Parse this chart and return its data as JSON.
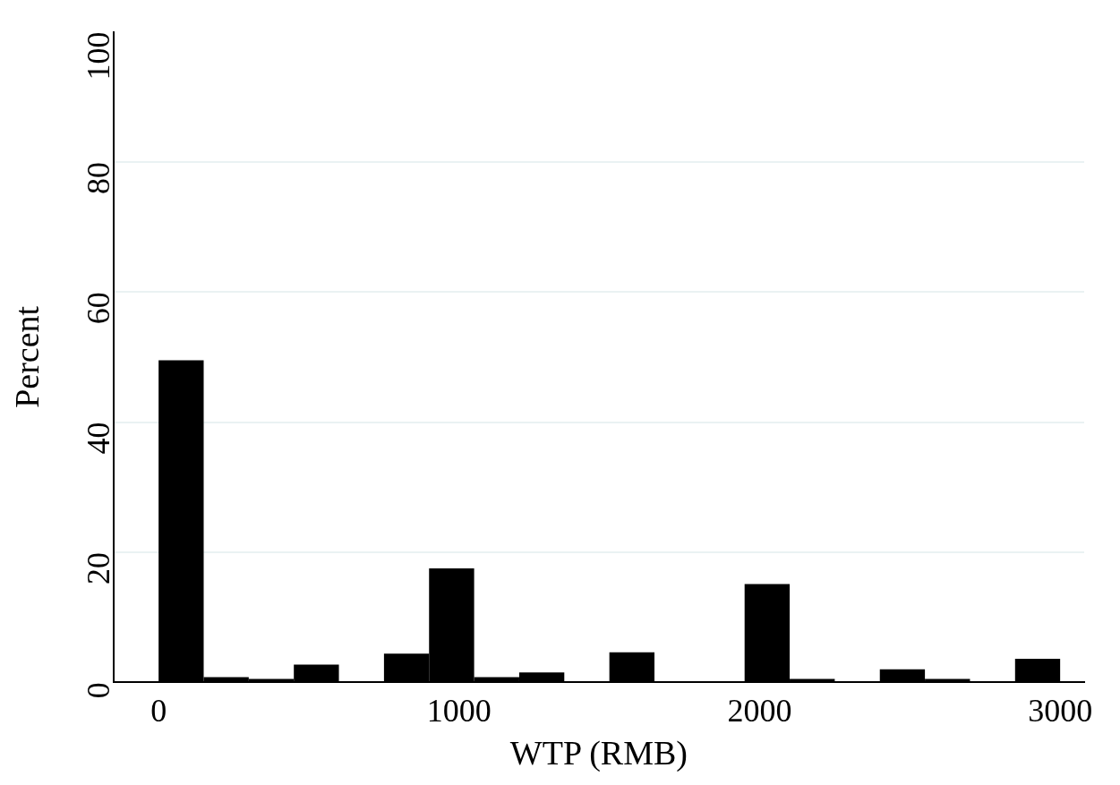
{
  "chart_data": {
    "type": "histogram",
    "xlabel": "WTP (RMB)",
    "ylabel": "Percent",
    "bins": [
      0,
      150,
      300,
      450,
      600,
      750,
      900,
      1050,
      1200,
      1350,
      1500,
      1650,
      1800,
      1950,
      2100,
      2250,
      2400,
      2550,
      2700,
      2850,
      3000
    ],
    "values": [
      49.5,
      0.8,
      0.5,
      2.7,
      0,
      4.4,
      17.5,
      0.8,
      1.5,
      0,
      4.6,
      0,
      0,
      15.1,
      0.5,
      0,
      2.0,
      0.5,
      0,
      3.6
    ],
    "color": "#000000",
    "xlim": [
      -150,
      3080
    ],
    "xticks": [
      0,
      1000,
      2000,
      3000
    ],
    "ylim": [
      0,
      100
    ],
    "yticks": [
      0,
      20,
      40,
      60,
      80,
      100
    ],
    "grid": "y"
  }
}
